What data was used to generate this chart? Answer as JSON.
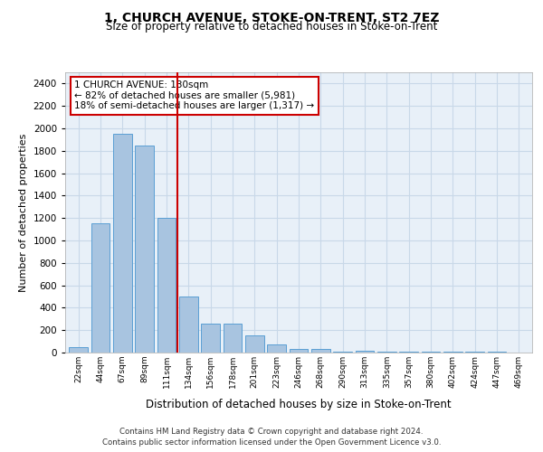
{
  "title1": "1, CHURCH AVENUE, STOKE-ON-TRENT, ST2 7EZ",
  "title2": "Size of property relative to detached houses in Stoke-on-Trent",
  "xlabel": "Distribution of detached houses by size in Stoke-on-Trent",
  "ylabel": "Number of detached properties",
  "categories": [
    "22sqm",
    "44sqm",
    "67sqm",
    "89sqm",
    "111sqm",
    "134sqm",
    "156sqm",
    "178sqm",
    "201sqm",
    "223sqm",
    "246sqm",
    "268sqm",
    "290sqm",
    "313sqm",
    "335sqm",
    "357sqm",
    "380sqm",
    "402sqm",
    "424sqm",
    "447sqm",
    "469sqm"
  ],
  "values": [
    50,
    1150,
    1950,
    1850,
    1200,
    500,
    260,
    260,
    150,
    70,
    35,
    30,
    5,
    15,
    5,
    5,
    5,
    5,
    5,
    5,
    2
  ],
  "bar_color": "#a8c4e0",
  "bar_edge_color": "#5a9fd4",
  "vline_x_index": 4.5,
  "vline_color": "#cc0000",
  "annotation_text": "1 CHURCH AVENUE: 130sqm\n← 82% of detached houses are smaller (5,981)\n18% of semi-detached houses are larger (1,317) →",
  "annotation_box_color": "#ffffff",
  "annotation_box_edge": "#cc0000",
  "ylim": [
    0,
    2500
  ],
  "yticks": [
    0,
    200,
    400,
    600,
    800,
    1000,
    1200,
    1400,
    1600,
    1800,
    2000,
    2200,
    2400
  ],
  "grid_color": "#c8d8e8",
  "bg_color": "#e8f0f8",
  "footer1": "Contains HM Land Registry data © Crown copyright and database right 2024.",
  "footer2": "Contains public sector information licensed under the Open Government Licence v3.0."
}
